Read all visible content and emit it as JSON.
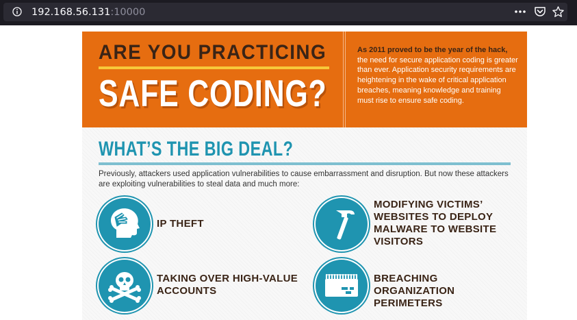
{
  "browser": {
    "url_host": "192.168.56.131",
    "url_port": ":10000"
  },
  "hero": {
    "headline_line1": "ARE YOU PRACTICING",
    "headline_line2": "SAFE CODING?",
    "intro_bold": "As 2011 proved to be the year of the hack,",
    "intro_rest": "the need for secure application coding is greater than ever. Application security requirements are heightening in the wake of critical application breaches, meaning knowledge and training must rise to ensure safe coding."
  },
  "section": {
    "title": "WHAT’S THE BIG DEAL?",
    "intro": "Previously, attackers used application vulnerabilities to cause embarrassment and disruption. But now these attackers are exploiting vulnerabilities to steal data and much more:"
  },
  "features": [
    {
      "label": "IP THEFT",
      "icon": "head-icon"
    },
    {
      "label": "MODIFYING VICTIMS’ WEBSITES TO DEPLOY MALWARE TO WEBSITE VISITORS",
      "icon": "hammer-icon"
    },
    {
      "label": "TAKING OVER HIGH-VALUE ACCOUNTS",
      "icon": "skull-crossbones-icon"
    },
    {
      "label": "BREACHING ORGANIZATION PERIMETERS",
      "icon": "fortress-wall-icon"
    }
  ],
  "colors": {
    "hero_orange": "#e66d10",
    "accent_teal": "#1f94b0",
    "headline_brown": "#3a2416",
    "rule_yellow": "#f7c83a"
  }
}
